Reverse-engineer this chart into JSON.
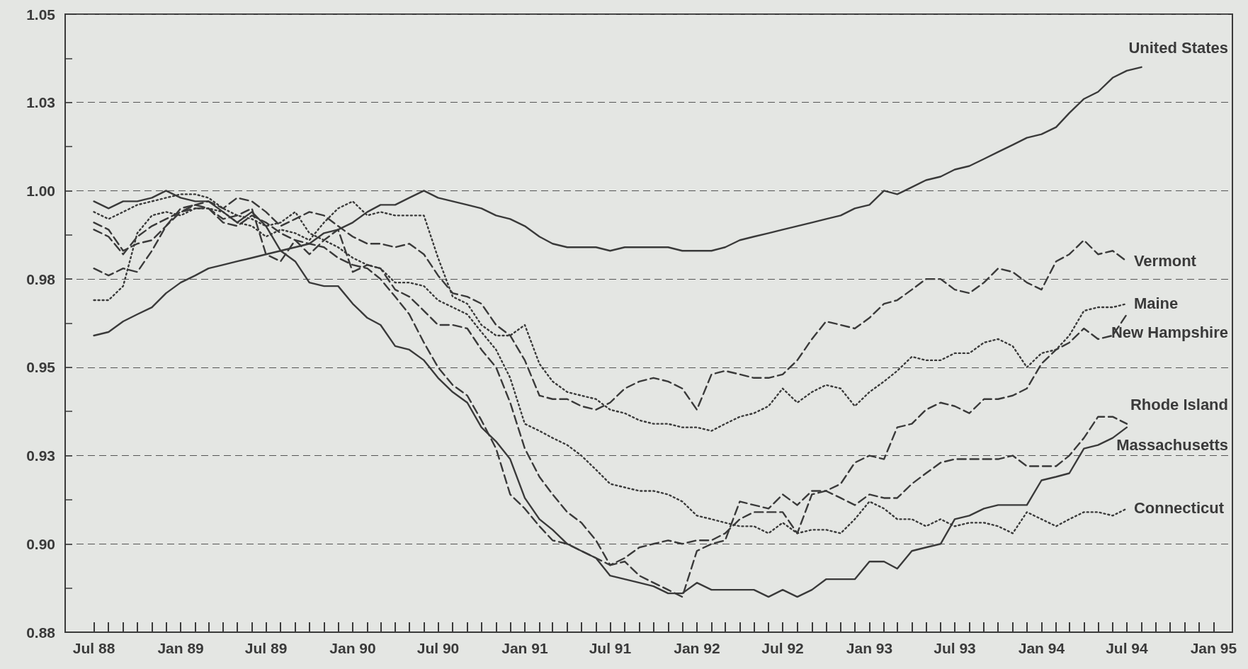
{
  "chart_data": {
    "type": "line",
    "x": [
      "1988-07",
      "1988-08",
      "1988-09",
      "1988-10",
      "1988-11",
      "1988-12",
      "1989-01",
      "1989-02",
      "1989-03",
      "1989-04",
      "1989-05",
      "1989-06",
      "1989-07",
      "1989-08",
      "1989-09",
      "1989-10",
      "1989-11",
      "1989-12",
      "1990-01",
      "1990-02",
      "1990-03",
      "1990-04",
      "1990-05",
      "1990-06",
      "1990-07",
      "1990-08",
      "1990-09",
      "1990-10",
      "1990-11",
      "1990-12",
      "1991-01",
      "1991-02",
      "1991-03",
      "1991-04",
      "1991-05",
      "1991-06",
      "1991-07",
      "1991-08",
      "1991-09",
      "1991-10",
      "1991-11",
      "1991-12",
      "1992-01",
      "1992-02",
      "1992-03",
      "1992-04",
      "1992-05",
      "1992-06",
      "1992-07",
      "1992-08",
      "1992-09",
      "1992-10",
      "1992-11",
      "1992-12",
      "1993-01",
      "1993-02",
      "1993-03",
      "1993-04",
      "1993-05",
      "1993-06",
      "1993-07",
      "1993-08",
      "1993-09",
      "1993-10",
      "1993-11",
      "1993-12",
      "1994-01",
      "1994-02",
      "1994-03",
      "1994-04",
      "1994-05",
      "1994-06",
      "1994-07",
      "1994-08"
    ],
    "series": [
      {
        "name": "United States",
        "color": "#3a3a3a",
        "line_style": "solid",
        "values": [
          0.959,
          0.96,
          0.963,
          0.965,
          0.967,
          0.971,
          0.974,
          0.976,
          0.978,
          0.979,
          0.98,
          0.981,
          0.982,
          0.983,
          0.984,
          0.985,
          0.988,
          0.989,
          0.991,
          0.994,
          0.996,
          0.996,
          0.998,
          1.0,
          0.998,
          0.997,
          0.996,
          0.995,
          0.993,
          0.992,
          0.99,
          0.987,
          0.985,
          0.984,
          0.984,
          0.984,
          0.983,
          0.984,
          0.984,
          0.984,
          0.984,
          0.983,
          0.983,
          0.983,
          0.984,
          0.986,
          0.987,
          0.988,
          0.989,
          0.99,
          0.991,
          0.992,
          0.993,
          0.995,
          0.996,
          1.0,
          0.999,
          1.001,
          1.003,
          1.004,
          1.006,
          1.007,
          1.009,
          1.011,
          1.013,
          1.015,
          1.016,
          1.018,
          1.022,
          1.026,
          1.028,
          1.032,
          1.034,
          1.035
        ]
      },
      {
        "name": "Vermont",
        "color": "#3a3a3a",
        "line_style": "dashed",
        "values": [
          0.989,
          0.987,
          0.982,
          0.987,
          0.99,
          0.992,
          0.994,
          0.996,
          0.997,
          0.995,
          0.998,
          0.997,
          0.994,
          0.99,
          0.992,
          0.994,
          0.993,
          0.99,
          0.987,
          0.985,
          0.985,
          0.984,
          0.985,
          0.982,
          0.976,
          0.971,
          0.97,
          0.968,
          0.962,
          0.959,
          0.952,
          0.942,
          0.941,
          0.941,
          0.939,
          0.938,
          0.94,
          0.944,
          0.946,
          0.947,
          0.946,
          0.944,
          0.938,
          0.948,
          0.949,
          0.948,
          0.947,
          0.947,
          0.948,
          0.952,
          0.958,
          0.963,
          0.962,
          0.961,
          0.964,
          0.968,
          0.969,
          0.972,
          0.975,
          0.975,
          0.972,
          0.971,
          0.974,
          0.978,
          0.977,
          0.974,
          0.972,
          0.98,
          0.982,
          0.986,
          0.982,
          0.983,
          0.98,
          null
        ]
      },
      {
        "name": "Maine",
        "color": "#3a3a3a",
        "line_style": "dotted",
        "values": [
          0.969,
          0.969,
          0.973,
          0.988,
          0.993,
          0.994,
          0.993,
          0.995,
          0.995,
          0.994,
          0.991,
          0.99,
          0.987,
          0.989,
          0.988,
          0.986,
          0.991,
          0.995,
          0.997,
          0.993,
          0.994,
          0.993,
          0.993,
          0.993,
          0.981,
          0.97,
          0.968,
          0.962,
          0.959,
          0.959,
          0.962,
          0.951,
          0.946,
          0.943,
          0.942,
          0.941,
          0.938,
          0.937,
          0.935,
          0.934,
          0.934,
          0.933,
          0.933,
          0.932,
          0.934,
          0.936,
          0.937,
          0.939,
          0.944,
          0.94,
          0.943,
          0.945,
          0.944,
          0.939,
          0.943,
          0.946,
          0.949,
          0.953,
          0.952,
          0.952,
          0.954,
          0.954,
          0.957,
          0.958,
          0.956,
          0.95,
          0.954,
          0.955,
          0.959,
          0.966,
          0.967,
          0.967,
          0.968,
          null
        ]
      },
      {
        "name": "New Hampshire",
        "color": "#3a3a3a",
        "line_style": "dashed",
        "values": [
          0.978,
          0.976,
          0.978,
          0.977,
          0.983,
          0.99,
          0.995,
          0.996,
          0.995,
          0.991,
          0.99,
          0.993,
          0.991,
          0.988,
          0.986,
          0.985,
          0.984,
          0.981,
          0.979,
          0.978,
          0.975,
          0.97,
          0.965,
          0.957,
          0.95,
          0.945,
          0.942,
          0.935,
          0.927,
          0.914,
          0.91,
          0.905,
          0.901,
          0.9,
          0.898,
          0.896,
          0.894,
          0.896,
          0.899,
          0.9,
          0.901,
          0.9,
          0.901,
          0.901,
          0.903,
          0.907,
          0.909,
          0.909,
          0.909,
          0.903,
          0.914,
          0.915,
          0.917,
          0.923,
          0.925,
          0.924,
          0.933,
          0.934,
          0.938,
          0.94,
          0.939,
          0.937,
          0.941,
          0.941,
          0.942,
          0.944,
          0.951,
          0.955,
          0.957,
          0.961,
          0.958,
          0.959,
          0.965,
          null
        ]
      },
      {
        "name": "Rhode Island",
        "color": "#3a3a3a",
        "line_style": "dashed",
        "values": [
          0.991,
          0.989,
          0.983,
          0.985,
          0.986,
          0.99,
          0.994,
          0.995,
          0.995,
          0.992,
          0.993,
          0.995,
          0.982,
          0.98,
          0.986,
          0.982,
          0.986,
          0.989,
          0.977,
          0.979,
          0.978,
          0.972,
          0.97,
          0.966,
          0.962,
          0.962,
          0.961,
          0.955,
          0.95,
          0.94,
          0.927,
          0.919,
          0.914,
          0.909,
          0.906,
          0.901,
          0.894,
          0.895,
          0.891,
          0.889,
          0.887,
          0.885,
          0.898,
          0.9,
          0.901,
          0.912,
          0.911,
          0.91,
          0.914,
          0.911,
          0.915,
          0.915,
          0.913,
          0.911,
          0.914,
          0.913,
          0.913,
          0.917,
          0.92,
          0.923,
          0.924,
          0.924,
          0.924,
          0.924,
          0.925,
          0.922,
          0.922,
          0.922,
          0.925,
          0.93,
          0.936,
          0.936,
          0.934,
          null
        ]
      },
      {
        "name": "Massachusetts",
        "color": "#3a3a3a",
        "line_style": "solid",
        "values": [
          0.997,
          0.995,
          0.997,
          0.997,
          0.998,
          1.0,
          0.998,
          0.997,
          0.997,
          0.994,
          0.991,
          0.994,
          0.99,
          0.983,
          0.98,
          0.974,
          0.973,
          0.973,
          0.968,
          0.964,
          0.962,
          0.956,
          0.955,
          0.952,
          0.947,
          0.943,
          0.94,
          0.933,
          0.929,
          0.924,
          0.913,
          0.907,
          0.904,
          0.9,
          0.898,
          0.896,
          0.891,
          0.89,
          0.889,
          0.888,
          0.886,
          0.886,
          0.889,
          0.887,
          0.887,
          0.887,
          0.887,
          0.885,
          0.887,
          0.885,
          0.887,
          0.89,
          0.89,
          0.89,
          0.895,
          0.895,
          0.893,
          0.898,
          0.899,
          0.9,
          0.907,
          0.908,
          0.91,
          0.911,
          0.911,
          0.911,
          0.918,
          0.919,
          0.92,
          0.927,
          0.928,
          0.93,
          0.933,
          null
        ]
      },
      {
        "name": "Connecticut",
        "color": "#3a3a3a",
        "line_style": "dotted",
        "values": [
          0.994,
          0.992,
          0.994,
          0.996,
          0.997,
          0.998,
          0.999,
          0.999,
          0.998,
          0.995,
          0.993,
          0.992,
          0.99,
          0.991,
          0.994,
          0.988,
          0.986,
          0.984,
          0.981,
          0.979,
          0.978,
          0.974,
          0.974,
          0.973,
          0.969,
          0.967,
          0.965,
          0.96,
          0.955,
          0.947,
          0.934,
          0.932,
          0.93,
          0.928,
          0.925,
          0.921,
          0.917,
          0.916,
          0.915,
          0.915,
          0.914,
          0.912,
          0.908,
          0.907,
          0.906,
          0.905,
          0.905,
          0.903,
          0.906,
          0.903,
          0.904,
          0.904,
          0.903,
          0.907,
          0.912,
          0.91,
          0.907,
          0.907,
          0.905,
          0.907,
          0.905,
          0.906,
          0.906,
          0.905,
          0.903,
          0.909,
          0.907,
          0.905,
          0.907,
          0.909,
          0.909,
          0.908,
          0.91,
          null
        ]
      }
    ],
    "xlim": [
      "1988-05",
      "1995-02-10"
    ],
    "xticks": [
      {
        "value": "1988-07",
        "label": "Jul 88"
      },
      {
        "value": "1988-08",
        "label": null
      },
      {
        "value": "1988-09",
        "label": null
      },
      {
        "value": "1988-10",
        "label": null
      },
      {
        "value": "1988-11",
        "label": null
      },
      {
        "value": "1988-12",
        "label": null
      },
      {
        "value": "1989-01",
        "label": "Jan 89"
      },
      {
        "value": "1989-02",
        "label": null
      },
      {
        "value": "1989-03",
        "label": null
      },
      {
        "value": "1989-04",
        "label": null
      },
      {
        "value": "1989-05",
        "label": null
      },
      {
        "value": "1989-06",
        "label": null
      },
      {
        "value": "1989-07",
        "label": "Jul 89"
      },
      {
        "value": "1989-08",
        "label": null
      },
      {
        "value": "1989-09",
        "label": null
      },
      {
        "value": "1989-10",
        "label": null
      },
      {
        "value": "1989-11",
        "label": null
      },
      {
        "value": "1989-12",
        "label": null
      },
      {
        "value": "1990-01",
        "label": "Jan 90"
      },
      {
        "value": "1990-02",
        "label": null
      },
      {
        "value": "1990-03",
        "label": null
      },
      {
        "value": "1990-04",
        "label": null
      },
      {
        "value": "1990-05",
        "label": null
      },
      {
        "value": "1990-06",
        "label": null
      },
      {
        "value": "1990-07",
        "label": "Jul 90"
      },
      {
        "value": "1990-08",
        "label": null
      },
      {
        "value": "1990-09",
        "label": null
      },
      {
        "value": "1990-10",
        "label": null
      },
      {
        "value": "1990-11",
        "label": null
      },
      {
        "value": "1990-12",
        "label": null
      },
      {
        "value": "1991-01",
        "label": "Jan 91"
      },
      {
        "value": "1991-02",
        "label": null
      },
      {
        "value": "1991-03",
        "label": null
      },
      {
        "value": "1991-04",
        "label": null
      },
      {
        "value": "1991-05",
        "label": null
      },
      {
        "value": "1991-06",
        "label": null
      },
      {
        "value": "1991-07",
        "label": "Jul 91"
      },
      {
        "value": "1991-08",
        "label": null
      },
      {
        "value": "1991-09",
        "label": null
      },
      {
        "value": "1991-10",
        "label": null
      },
      {
        "value": "1991-11",
        "label": null
      },
      {
        "value": "1991-12",
        "label": null
      },
      {
        "value": "1992-01",
        "label": "Jan 92"
      },
      {
        "value": "1992-02",
        "label": null
      },
      {
        "value": "1992-03",
        "label": null
      },
      {
        "value": "1992-04",
        "label": null
      },
      {
        "value": "1992-05",
        "label": null
      },
      {
        "value": "1992-06",
        "label": null
      },
      {
        "value": "1992-07",
        "label": "Jul 92"
      },
      {
        "value": "1992-08",
        "label": null
      },
      {
        "value": "1992-09",
        "label": null
      },
      {
        "value": "1992-10",
        "label": null
      },
      {
        "value": "1992-11",
        "label": null
      },
      {
        "value": "1992-12",
        "label": null
      },
      {
        "value": "1993-01",
        "label": "Jan 93"
      },
      {
        "value": "1993-02",
        "label": null
      },
      {
        "value": "1993-03",
        "label": null
      },
      {
        "value": "1993-04",
        "label": null
      },
      {
        "value": "1993-05",
        "label": null
      },
      {
        "value": "1993-06",
        "label": null
      },
      {
        "value": "1993-07",
        "label": "Jul 93"
      },
      {
        "value": "1993-08",
        "label": null
      },
      {
        "value": "1993-09",
        "label": null
      },
      {
        "value": "1993-10",
        "label": null
      },
      {
        "value": "1993-11",
        "label": null
      },
      {
        "value": "1993-12",
        "label": null
      },
      {
        "value": "1994-01",
        "label": "Jan 94"
      },
      {
        "value": "1994-02",
        "label": null
      },
      {
        "value": "1994-03",
        "label": null
      },
      {
        "value": "1994-04",
        "label": null
      },
      {
        "value": "1994-05",
        "label": null
      },
      {
        "value": "1994-06",
        "label": null
      },
      {
        "value": "1994-07",
        "label": "Jul 94"
      },
      {
        "value": "1994-08",
        "label": null
      },
      {
        "value": "1994-09",
        "label": null
      },
      {
        "value": "1994-10",
        "label": null
      },
      {
        "value": "1994-11",
        "label": null
      },
      {
        "value": "1994-12",
        "label": null
      },
      {
        "value": "1995-01",
        "label": "Jan 95"
      }
    ],
    "ylim": [
      0.875,
      1.05
    ],
    "yticks": [
      {
        "value": 0.875,
        "label": "0.88"
      },
      {
        "value": 0.8875,
        "label": null
      },
      {
        "value": 0.9,
        "label": "0.90"
      },
      {
        "value": 0.9125,
        "label": null
      },
      {
        "value": 0.925,
        "label": "0.93"
      },
      {
        "value": 0.9375,
        "label": null
      },
      {
        "value": 0.95,
        "label": "0.95"
      },
      {
        "value": 0.9625,
        "label": null
      },
      {
        "value": 0.975,
        "label": "0.98"
      },
      {
        "value": 0.9875,
        "label": null
      },
      {
        "value": 1.0,
        "label": "1.00"
      },
      {
        "value": 1.0125,
        "label": null
      },
      {
        "value": 1.025,
        "label": "1.03"
      },
      {
        "value": 1.0375,
        "label": null
      },
      {
        "value": 1.05,
        "label": "1.05"
      }
    ],
    "grid": "y",
    "legend": false,
    "marker": "none"
  }
}
